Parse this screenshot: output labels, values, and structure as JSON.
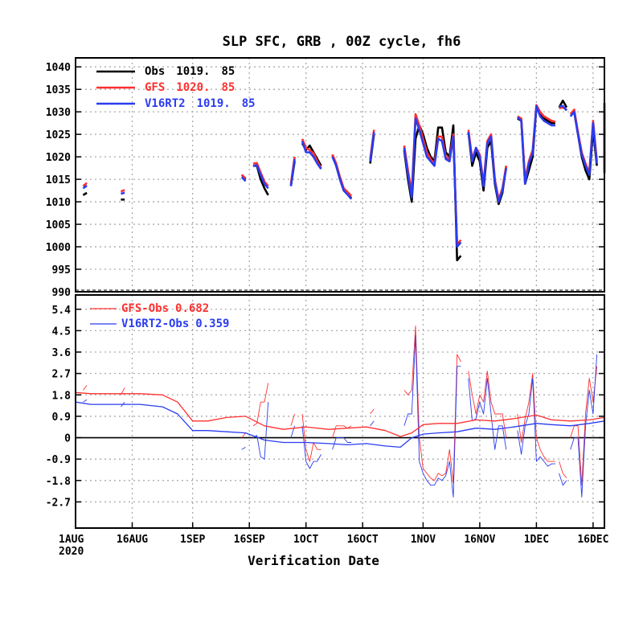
{
  "chart_data": [
    {
      "type": "line",
      "panel": "top",
      "title": "SLP SFC, GRB  , 00Z cycle, fh6",
      "xlabel": "Verification Date",
      "ylim": [
        990,
        1042
      ],
      "yticks": [
        990,
        995,
        1000,
        1005,
        1010,
        1015,
        1020,
        1025,
        1030,
        1035,
        1040
      ],
      "x_range": [
        "2020-08-01",
        "2020-12-19"
      ],
      "x_ticks": [
        {
          "date": "2020-08-01",
          "label": "1AUG",
          "sub": "2020"
        },
        {
          "date": "2020-08-16",
          "label": "16AUG"
        },
        {
          "date": "2020-09-01",
          "label": "1SEP"
        },
        {
          "date": "2020-09-16",
          "label": "16SEP"
        },
        {
          "date": "2020-10-01",
          "label": "1OCT"
        },
        {
          "date": "2020-10-16",
          "label": "16OCT"
        },
        {
          "date": "2020-11-01",
          "label": "1NOV"
        },
        {
          "date": "2020-11-16",
          "label": "16NOV"
        },
        {
          "date": "2020-12-01",
          "label": "1DEC"
        },
        {
          "date": "2020-12-16",
          "label": "16DEC"
        }
      ],
      "grid": true,
      "legend_position": "top-left",
      "series": [
        {
          "name": "Obs",
          "mean": "1019.",
          "count": "85",
          "color": "#000000"
        },
        {
          "name": "GFS",
          "mean": "1020.",
          "count": "85",
          "color": "#ff3030"
        },
        {
          "name": "V16RT2",
          "mean": "1019.",
          "count": "85",
          "color": "#2a3cf0"
        }
      ],
      "segments": [
        {
          "x": [
            "2020-08-03",
            "2020-08-04"
          ],
          "obs": [
            1011.5,
            1012
          ],
          "gfs": [
            1013.5,
            1014.2
          ],
          "v16": [
            1013,
            1013.6
          ]
        },
        {
          "x": [
            "2020-08-13",
            "2020-08-14"
          ],
          "obs": [
            1010.5,
            1010.5
          ],
          "gfs": [
            1012.3,
            1012.6
          ],
          "v16": [
            1011.8,
            1012
          ]
        },
        {
          "x": [
            "2020-09-14",
            "2020-09-15"
          ],
          "obs": [
            1016,
            1015
          ],
          "gfs": [
            1016,
            1015.2
          ],
          "v16": [
            1015.5,
            1014.6
          ]
        },
        {
          "x": [
            "2020-09-17",
            "2020-09-18",
            "2020-09-19",
            "2020-09-20",
            "2020-09-21"
          ],
          "obs": [
            1018,
            1018,
            1015,
            1013,
            1011.5
          ],
          "gfs": [
            1018.5,
            1018.6,
            1016.5,
            1014.5,
            1013.5
          ],
          "v16": [
            1018,
            1018.1,
            1016,
            1014,
            1013
          ]
        },
        {
          "x": [
            "2020-09-27",
            "2020-09-28"
          ],
          "obs": [
            1013.5,
            1019
          ],
          "gfs": [
            1014,
            1020
          ],
          "v16": [
            1013.5,
            1019.5
          ]
        },
        {
          "x": [
            "2020-09-30",
            "2020-10-01",
            "2020-10-02",
            "2020-10-03",
            "2020-10-04",
            "2020-10-05"
          ],
          "obs": [
            1023,
            1021.5,
            1022.5,
            1021,
            1019.5,
            1018
          ],
          "gfs": [
            1024,
            1022,
            1021.5,
            1020.8,
            1019,
            1017.5
          ],
          "v16": [
            1023.5,
            1021,
            1021,
            1020,
            1018.5,
            1017.3
          ]
        },
        {
          "x": [
            "2020-10-08",
            "2020-10-09",
            "2020-10-10",
            "2020-10-11",
            "2020-10-12",
            "2020-10-13"
          ],
          "obs": [
            1020.5,
            1018,
            1015,
            1012.5,
            1011.8,
            1010.8
          ],
          "gfs": [
            1020.5,
            1018.5,
            1015.5,
            1013,
            1012.2,
            1011.3
          ],
          "v16": [
            1020,
            1018,
            1015,
            1012.5,
            1011.6,
            1010.6
          ]
        },
        {
          "x": [
            "2020-10-18",
            "2020-10-19"
          ],
          "obs": [
            1018.5,
            1025
          ],
          "gfs": [
            1019.5,
            1026
          ],
          "v16": [
            1019,
            1025.5
          ]
        },
        {
          "x": [
            "2020-10-27",
            "2020-10-28",
            "2020-10-29",
            "2020-10-30",
            "2020-10-31",
            "2020-11-01",
            "2020-11-02",
            "2020-11-03",
            "2020-11-04",
            "2020-11-05",
            "2020-11-06",
            "2020-11-07",
            "2020-11-08",
            "2020-11-09",
            "2020-11-10",
            "2020-11-11"
          ],
          "obs": [
            1021.5,
            1015,
            1010,
            1024,
            1027,
            1025,
            1022,
            1020,
            1019,
            1026.5,
            1026.5,
            1021,
            1020,
            1027,
            997,
            998
          ],
          "gfs": [
            1022.5,
            1017,
            1012,
            1029.5,
            1027,
            1024,
            1021,
            1019.5,
            1018.5,
            1024.5,
            1024.5,
            1020,
            1019.5,
            1025,
            1000.5,
            1001.5
          ],
          "v16": [
            1022,
            1016,
            1011,
            1028.5,
            1026,
            1023,
            1020,
            1019,
            1018,
            1024,
            1023.5,
            1019.5,
            1019,
            1024.5,
            1000,
            1001
          ]
        },
        {
          "x": [
            "2020-11-13",
            "2020-11-14",
            "2020-11-15",
            "2020-11-16",
            "2020-11-17",
            "2020-11-18",
            "2020-11-19",
            "2020-11-20",
            "2020-11-21",
            "2020-11-22",
            "2020-11-23"
          ],
          "obs": [
            1025.5,
            1018,
            1021,
            1019,
            1012.5,
            1022,
            1023.5,
            1014,
            1009.5,
            1012,
            1018
          ],
          "gfs": [
            1026,
            1019.5,
            1022,
            1020.5,
            1014,
            1023.5,
            1025,
            1015,
            1010.5,
            1013,
            1018
          ],
          "v16": [
            1025.5,
            1019,
            1022,
            1020,
            1013.5,
            1023,
            1024.5,
            1014.5,
            1010,
            1012.5,
            1017.5
          ]
        },
        {
          "x": [
            "2020-11-26",
            "2020-11-27",
            "2020-11-28",
            "2020-11-29",
            "2020-11-30",
            "2020-12-01",
            "2020-12-02",
            "2020-12-03",
            "2020-12-04",
            "2020-12-05",
            "2020-12-06"
          ],
          "obs": [
            1028.5,
            1028,
            1014,
            1017,
            1020,
            1031,
            1029.5,
            1028.5,
            1028,
            1027.5,
            1027.5
          ],
          "gfs": [
            1029,
            1028.5,
            1015,
            1019,
            1021.5,
            1031.5,
            1030,
            1029,
            1028.5,
            1028,
            1027.8
          ],
          "v16": [
            1028.8,
            1028,
            1014,
            1018.5,
            1020.8,
            1031.3,
            1029,
            1028,
            1027.5,
            1027,
            1027
          ]
        },
        {
          "x": [
            "2020-12-07",
            "2020-12-08",
            "2020-12-09"
          ],
          "obs": [
            1031,
            1032.5,
            1031
          ],
          "gfs": [
            1030.8,
            1031,
            1030.5
          ],
          "v16": [
            1031.2,
            1031.3,
            1030.3
          ]
        },
        {
          "x": [
            "2020-12-10",
            "2020-12-11",
            "2020-12-12",
            "2020-12-13",
            "2020-12-14",
            "2020-12-15",
            "2020-12-16",
            "2020-12-17"
          ],
          "obs": [
            1029.5,
            1030,
            1025,
            1020,
            1017,
            1015,
            1026,
            1018
          ],
          "gfs": [
            1029.5,
            1030.5,
            1025.5,
            1021,
            1018.5,
            1016.5,
            1028,
            1019
          ],
          "v16": [
            1029,
            1030,
            1025,
            1020.5,
            1018,
            1016,
            1027.5,
            1018.5
          ]
        },
        {
          "x": [
            "2020-12-19",
            "2020-12-20",
            "2020-12-21",
            "2020-12-22"
          ],
          "obs": [
            1029,
            1016.5,
            1017.5,
            1030
          ],
          "gfs": [
            1029.5,
            1018,
            1019,
            1032
          ],
          "v16": [
            1029,
            1018,
            1019,
            1032
          ]
        }
      ]
    },
    {
      "type": "line",
      "panel": "bottom",
      "ylim": [
        -3.8,
        6.0
      ],
      "yticks": [
        -2.7,
        -1.8,
        -0.9,
        0,
        0.9,
        1.8,
        2.7,
        3.6,
        4.5,
        5.4
      ],
      "ytick_labels": [
        "-2.7",
        "-1.8",
        "-0.9",
        "0",
        "0.9",
        "1.8",
        "2.7",
        "3.6",
        "4.5",
        "5.4"
      ],
      "legend_position": "top-left",
      "series": [
        {
          "name": "GFS-Obs",
          "mean": "0.682",
          "color": "#ff3030"
        },
        {
          "name": "V16RT2-Obs",
          "mean": "0.359",
          "color": "#2a3cf0"
        }
      ],
      "cumulative_mean": {
        "x": [
          "2020-08-01",
          "2020-08-05",
          "2020-08-10",
          "2020-08-18",
          "2020-08-24",
          "2020-08-28",
          "2020-09-01",
          "2020-09-05",
          "2020-09-10",
          "2020-09-15",
          "2020-09-20",
          "2020-09-25",
          "2020-10-01",
          "2020-10-07",
          "2020-10-12",
          "2020-10-17",
          "2020-10-22",
          "2020-10-26",
          "2020-10-29",
          "2020-11-01",
          "2020-11-05",
          "2020-11-10",
          "2020-11-15",
          "2020-11-20",
          "2020-11-25",
          "2020-12-01",
          "2020-12-05",
          "2020-12-10",
          "2020-12-15",
          "2020-12-20",
          "2020-12-22"
        ],
        "gfs": [
          1.9,
          1.85,
          1.85,
          1.85,
          1.8,
          1.5,
          0.7,
          0.7,
          0.85,
          0.9,
          0.5,
          0.35,
          0.45,
          0.35,
          0.4,
          0.45,
          0.3,
          0.05,
          0.2,
          0.55,
          0.6,
          0.6,
          0.75,
          0.7,
          0.8,
          0.95,
          0.75,
          0.7,
          0.75,
          0.85,
          0.7
        ],
        "v16": [
          1.5,
          1.4,
          1.4,
          1.4,
          1.3,
          1.0,
          0.3,
          0.3,
          0.25,
          0.2,
          -0.1,
          -0.2,
          -0.2,
          -0.25,
          -0.3,
          -0.25,
          -0.35,
          -0.4,
          0.0,
          0.15,
          0.2,
          0.25,
          0.4,
          0.35,
          0.45,
          0.6,
          0.55,
          0.5,
          0.6,
          0.7,
          0.65
        ]
      },
      "segments": [
        {
          "x": [
            "2020-08-03",
            "2020-08-04"
          ],
          "gfs": [
            2.0,
            2.2
          ],
          "v16": [
            1.5,
            1.6
          ]
        },
        {
          "x": [
            "2020-08-13",
            "2020-08-14"
          ],
          "gfs": [
            1.8,
            2.1
          ],
          "v16": [
            1.3,
            1.5
          ]
        },
        {
          "x": [
            "2020-09-14",
            "2020-09-15"
          ],
          "gfs": [
            0.0,
            0.2
          ],
          "v16": [
            -0.5,
            -0.4
          ]
        },
        {
          "x": [
            "2020-09-17",
            "2020-09-18",
            "2020-09-19",
            "2020-09-20",
            "2020-09-21"
          ],
          "gfs": [
            0.5,
            0.6,
            1.5,
            1.5,
            2.3
          ],
          "v16": [
            0.0,
            0.1,
            -0.8,
            -0.9,
            1.5
          ]
        },
        {
          "x": [
            "2020-09-27",
            "2020-09-28"
          ],
          "gfs": [
            0.5,
            1.0
          ],
          "v16": [
            0.0,
            0.5
          ]
        },
        {
          "x": [
            "2020-09-30",
            "2020-10-01",
            "2020-10-02",
            "2020-10-03",
            "2020-10-04",
            "2020-10-05"
          ],
          "gfs": [
            1.0,
            -0.5,
            -1.0,
            -0.2,
            -0.5,
            -0.5
          ],
          "v16": [
            0.5,
            -1.0,
            -1.3,
            -1.0,
            -1.0,
            -0.7
          ]
        },
        {
          "x": [
            "2020-10-08",
            "2020-10-09",
            "2020-10-10",
            "2020-10-11",
            "2020-10-12",
            "2020-10-13"
          ],
          "gfs": [
            0.0,
            0.5,
            0.5,
            0.5,
            0.4,
            0.5
          ],
          "v16": [
            -0.5,
            0.0,
            0.0,
            0.0,
            -0.2,
            -0.2
          ]
        },
        {
          "x": [
            "2020-10-18",
            "2020-10-19"
          ],
          "gfs": [
            1.0,
            1.2
          ],
          "v16": [
            0.5,
            0.7
          ]
        },
        {
          "x": [
            "2020-10-27",
            "2020-10-28",
            "2020-10-29",
            "2020-10-30",
            "2020-10-31",
            "2020-11-01",
            "2020-11-02",
            "2020-11-03",
            "2020-11-04",
            "2020-11-05",
            "2020-11-06",
            "2020-11-07",
            "2020-11-08",
            "2020-11-09",
            "2020-11-10",
            "2020-11-11"
          ],
          "gfs": [
            2.0,
            1.8,
            2.0,
            4.7,
            0.0,
            -1.3,
            -1.5,
            -1.7,
            -1.8,
            -1.5,
            -1.6,
            -1.5,
            -0.5,
            -1.9,
            3.5,
            3.2
          ],
          "v16": [
            0.5,
            1.0,
            1.0,
            4.3,
            -1.0,
            -1.5,
            -1.8,
            -2.0,
            -2.0,
            -1.7,
            -1.8,
            -1.6,
            -1.0,
            -2.5,
            3.0,
            3.0
          ]
        },
        {
          "x": [
            "2020-11-13",
            "2020-11-14",
            "2020-11-15",
            "2020-11-16",
            "2020-11-17",
            "2020-11-18",
            "2020-11-19",
            "2020-11-20",
            "2020-11-21",
            "2020-11-22",
            "2020-11-23"
          ],
          "gfs": [
            2.8,
            1.8,
            1.0,
            1.8,
            1.5,
            2.8,
            1.5,
            1.0,
            1.0,
            1.0,
            0.0
          ],
          "v16": [
            2.5,
            0.7,
            0.8,
            1.5,
            1.0,
            2.5,
            1.0,
            -0.5,
            0.5,
            0.5,
            -0.5
          ]
        },
        {
          "x": [
            "2020-11-26",
            "2020-11-27",
            "2020-11-28",
            "2020-11-29",
            "2020-11-30",
            "2020-12-01",
            "2020-12-02",
            "2020-12-03",
            "2020-12-04",
            "2020-12-05",
            "2020-12-06"
          ],
          "gfs": [
            1.0,
            -0.2,
            0.8,
            1.5,
            2.7,
            0.0,
            -0.5,
            -0.8,
            -1.0,
            -1.0,
            -1.0
          ],
          "v16": [
            0.3,
            -0.7,
            0.5,
            1.0,
            2.5,
            -1.0,
            -0.8,
            -1.0,
            -1.2,
            -1.1,
            -1.1
          ]
        },
        {
          "x": [
            "2020-12-07",
            "2020-12-08",
            "2020-12-09"
          ],
          "gfs": [
            -1.0,
            -1.5,
            -1.7
          ],
          "v16": [
            -1.5,
            -2.0,
            -1.8
          ]
        },
        {
          "x": [
            "2020-12-10",
            "2020-12-11",
            "2020-12-12",
            "2020-12-13",
            "2020-12-14",
            "2020-12-15",
            "2020-12-16",
            "2020-12-17"
          ],
          "gfs": [
            0.0,
            0.5,
            0.5,
            -2.0,
            1.0,
            2.5,
            1.5,
            3.0
          ],
          "v16": [
            -0.5,
            0.0,
            0.0,
            -2.5,
            0.5,
            2.0,
            1.0,
            3.5
          ]
        },
        {
          "x": [
            "2020-12-19",
            "2020-12-20",
            "2020-12-21",
            "2020-12-22"
          ],
          "gfs": [
            1.0,
            1.5,
            3.3,
            0.5
          ],
          "v16": [
            1.5,
            2.0,
            3.5,
            2.5
          ]
        }
      ]
    }
  ]
}
